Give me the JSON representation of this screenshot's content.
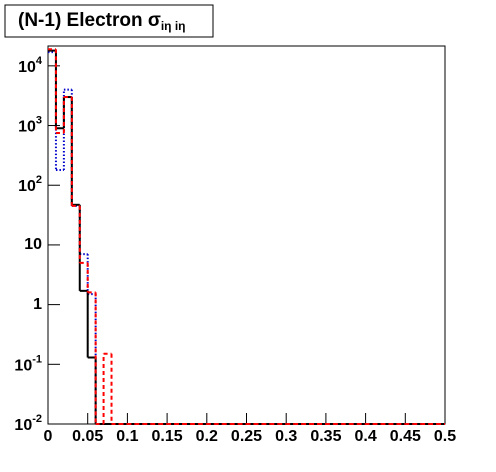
{
  "chart_data": {
    "type": "histogram",
    "title": "(N-1) Electron σ",
    "title_subscript": "iη iη",
    "bins": [
      0,
      0.01,
      0.02,
      0.03,
      0.04,
      0.05,
      0.06,
      0.07,
      0.08,
      0.09,
      0.1,
      0.11,
      0.12,
      0.13,
      0.14,
      0.15,
      0.16,
      0.17,
      0.18,
      0.19,
      0.2,
      0.21,
      0.22,
      0.23,
      0.24,
      0.25,
      0.26,
      0.27,
      0.28,
      0.29,
      0.3,
      0.31,
      0.32,
      0.33,
      0.34,
      0.35,
      0.36,
      0.37,
      0.38,
      0.39,
      0.4,
      0.41,
      0.42,
      0.43,
      0.44,
      0.45,
      0.46,
      0.47,
      0.48,
      0.49,
      0.5
    ],
    "series": [
      {
        "color": "#0000cc",
        "line_style": "dotted",
        "values": [
          17000,
          180,
          4000,
          45,
          7,
          1.5,
          0,
          0,
          0,
          0,
          0,
          0,
          0,
          0,
          0,
          0,
          0,
          0,
          0,
          0,
          0,
          0,
          0,
          0,
          0,
          0,
          0,
          0,
          0,
          0,
          0,
          0,
          0,
          0,
          0,
          0,
          0,
          0,
          0,
          0,
          0,
          0,
          0,
          0,
          0,
          0,
          0,
          0,
          0,
          0
        ]
      },
      {
        "color": "#000000",
        "line_style": "solid",
        "values": [
          18000,
          900,
          3000,
          47,
          1.7,
          0.13,
          0,
          0,
          0,
          0,
          0,
          0,
          0,
          0,
          0,
          0,
          0,
          0,
          0,
          0,
          0,
          0,
          0,
          0,
          0,
          0,
          0,
          0,
          0,
          0,
          0,
          0,
          0,
          0,
          0,
          0,
          0,
          0,
          0,
          0,
          0,
          0,
          0,
          0,
          0,
          0,
          0,
          0,
          0,
          0
        ]
      },
      {
        "color": "#ff0000",
        "line_style": "dashed",
        "values": [
          19000,
          750,
          3000,
          45,
          5,
          1.6,
          0,
          0.15,
          0,
          0,
          0,
          0,
          0,
          0,
          0,
          0,
          0,
          0,
          0,
          0,
          0,
          0,
          0,
          0,
          0,
          0,
          0,
          0,
          0,
          0,
          0,
          0,
          0,
          0,
          0,
          0,
          0,
          0,
          0,
          0,
          0,
          0,
          0,
          0,
          0,
          0,
          0,
          0,
          0,
          0
        ]
      }
    ],
    "xlim": [
      0,
      0.5
    ],
    "xticks": [
      0,
      0.05,
      0.1,
      0.15,
      0.2,
      0.25,
      0.3,
      0.35,
      0.4,
      0.45,
      0.5
    ],
    "ylim": [
      0.01,
      21500
    ],
    "log_y": true,
    "yticks": [
      {
        "value": 0.01,
        "label": "10",
        "exponent": "-2"
      },
      {
        "value": 0.1,
        "label": "10",
        "exponent": "-1"
      },
      1,
      10,
      {
        "value": 100,
        "label": "10",
        "exponent": "2"
      },
      {
        "value": 1000,
        "label": "10",
        "exponent": "3"
      },
      {
        "value": 10000,
        "label": "10",
        "exponent": "4"
      }
    ]
  }
}
